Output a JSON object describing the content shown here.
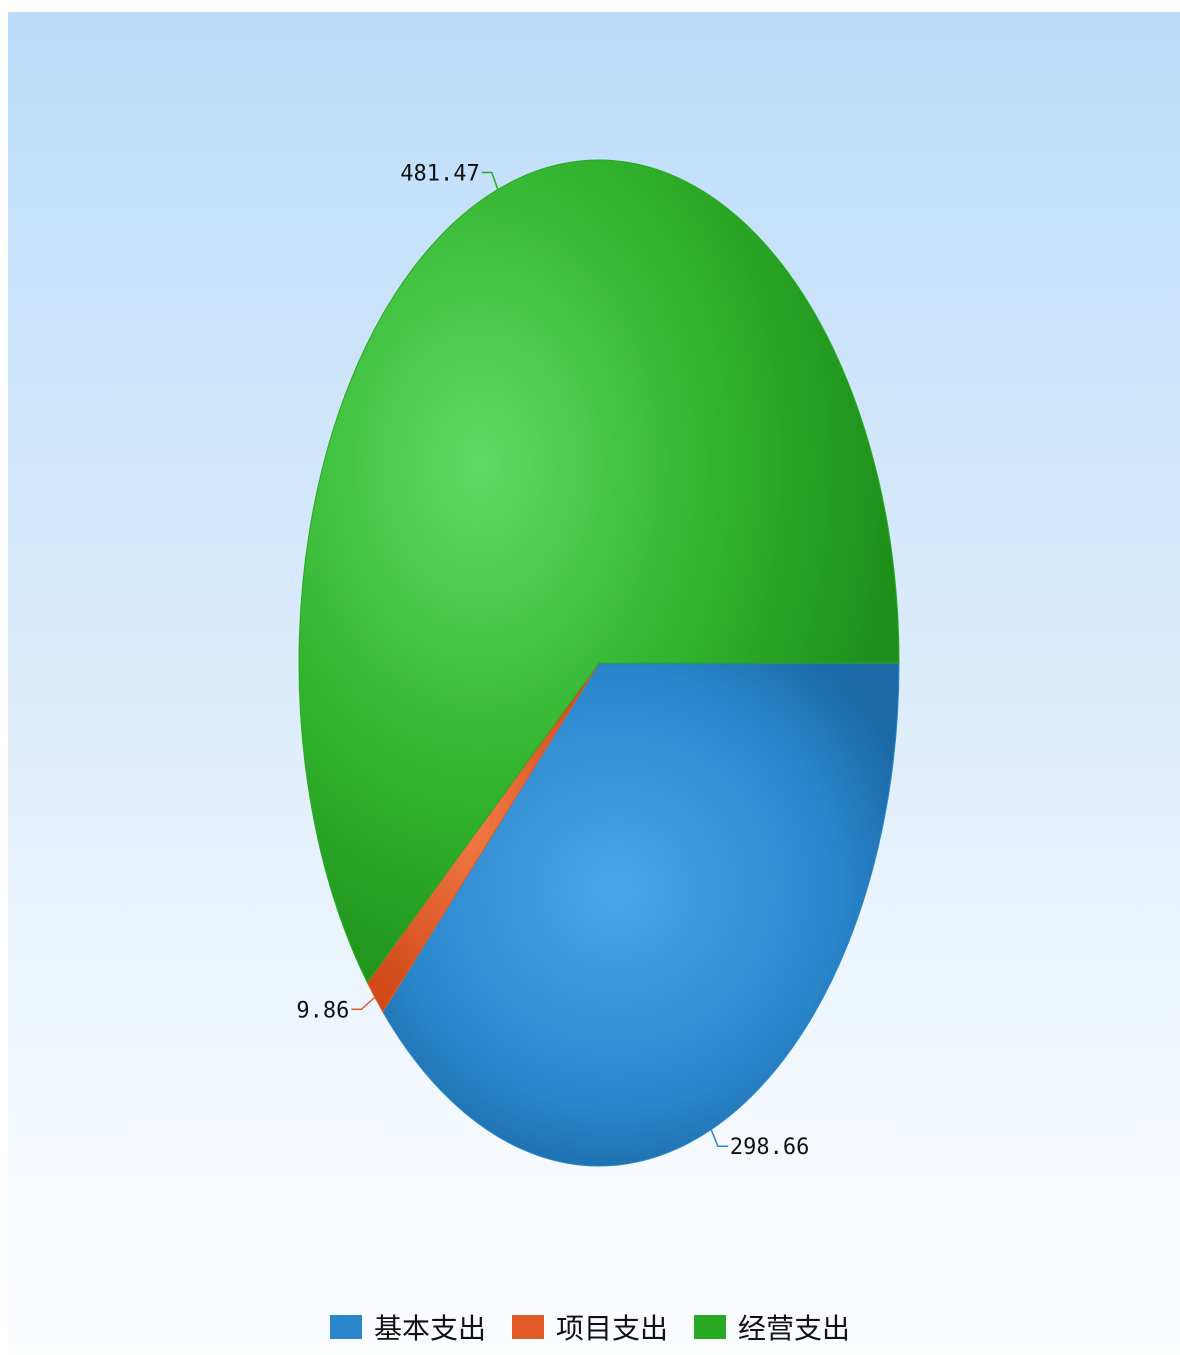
{
  "chart_data": {
    "type": "pie",
    "title": "",
    "categories": [
      "基本支出",
      "项目支出",
      "经营支出"
    ],
    "values": [
      298.66,
      9.86,
      481.47
    ],
    "value_labels": [
      "298.66",
      "9.86",
      "481.47"
    ],
    "colors": [
      "#2b87cc",
      "#e25a26",
      "#2aaa22"
    ],
    "legend": {
      "position": "bottom",
      "items": [
        "基本支出",
        "项目支出",
        "经营支出"
      ]
    },
    "start_angle_deg": 0,
    "direction": "clockwise"
  }
}
